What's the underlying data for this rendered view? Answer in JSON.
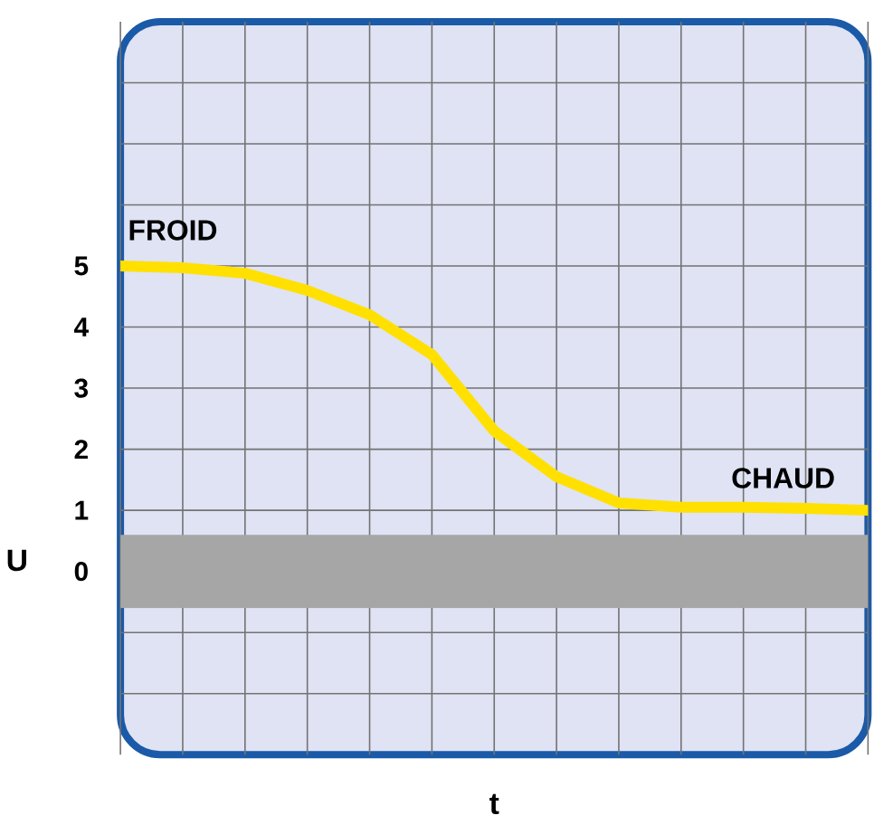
{
  "chart_data": {
    "type": "line",
    "xlabel": "t",
    "ylabel": "U",
    "categories": [
      null,
      null,
      null,
      null,
      null,
      null,
      null,
      null,
      null,
      null,
      null,
      null,
      null
    ],
    "series": [
      {
        "color": "#ffe000",
        "values": [
          5.0,
          4.97,
          4.88,
          4.6,
          4.2,
          3.55,
          2.3,
          1.55,
          1.12,
          1.05,
          1.05,
          1.03,
          1.0
        ]
      }
    ],
    "ylim": [
      -3,
      9
    ],
    "yticks": [
      {
        "value": -2,
        "label": null
      },
      {
        "value": -1,
        "label": null
      },
      0,
      1,
      2,
      3,
      4,
      5,
      {
        "value": 6,
        "label": null
      },
      {
        "value": 7,
        "label": null
      },
      {
        "value": 8,
        "label": null
      }
    ],
    "tick_labels": "y",
    "grid": true,
    "marker": "none",
    "line_style": "solid",
    "bands": [
      {
        "axis": "y",
        "from": -0.6,
        "to": 0.6,
        "color": "#a6a6a6"
      }
    ],
    "annotations": [
      "FROID",
      "CHAUD"
    ]
  }
}
